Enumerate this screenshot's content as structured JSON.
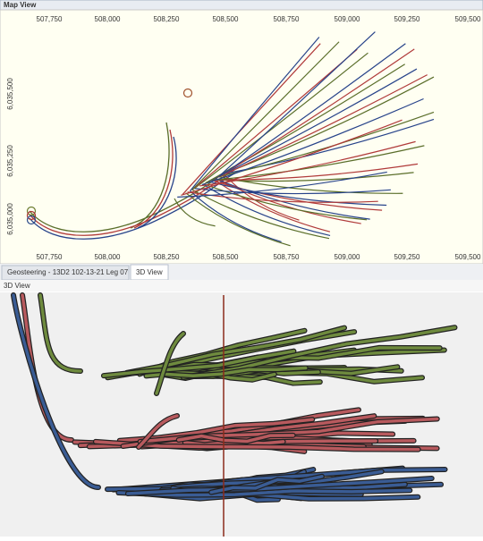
{
  "map_view": {
    "title": "Map View",
    "x_ticks_top": [
      "507,750",
      "508,000",
      "508,250",
      "508,500",
      "508,750",
      "509,000",
      "509,250",
      "509,500"
    ],
    "x_ticks_bottom": [
      "507,750",
      "508,000",
      "508,250",
      "508,500",
      "508,750",
      "509,000",
      "509,250",
      "509,500"
    ],
    "y_ticks": [
      "6,035,500",
      "6,035,250",
      "6,035,000"
    ]
  },
  "tabs": [
    "Geosteering - 13D2 102-13-21 Leg 07",
    "3D View"
  ],
  "view_3d": {
    "title": "3D View"
  }
}
